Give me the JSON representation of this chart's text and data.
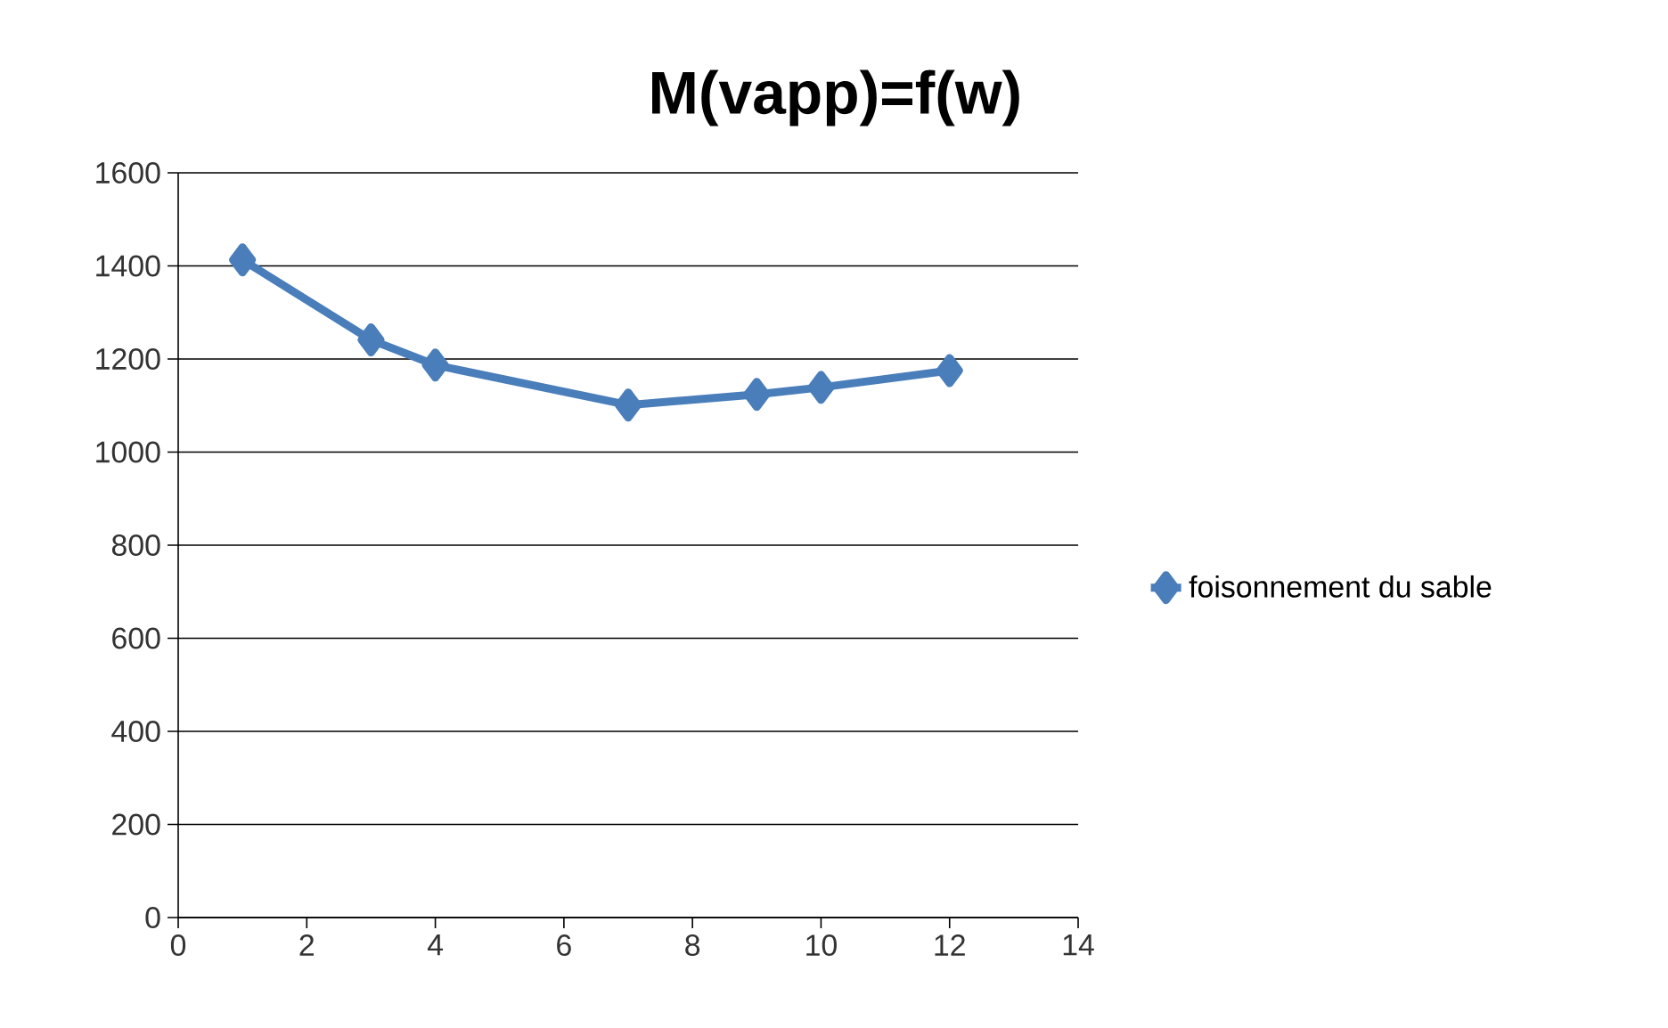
{
  "chart_data": {
    "type": "line",
    "title": "M(vapp)=f(w)",
    "x": [
      1,
      3,
      4,
      7,
      9,
      10,
      12
    ],
    "series": [
      {
        "name": "foisonnement du sable",
        "color": "#4a7ebb",
        "values": [
          1413,
          1241,
          1187,
          1101,
          1124,
          1139,
          1175
        ]
      }
    ],
    "xlim": [
      0,
      14
    ],
    "xticks": [
      0,
      2,
      4,
      6,
      8,
      10,
      12,
      14
    ],
    "ylim": [
      0,
      1600
    ],
    "yticks": [
      0,
      200,
      400,
      600,
      800,
      1000,
      1200,
      1400,
      1600
    ],
    "grid": "y",
    "legend": "right",
    "marker": "diamond",
    "line_style": "solid"
  }
}
